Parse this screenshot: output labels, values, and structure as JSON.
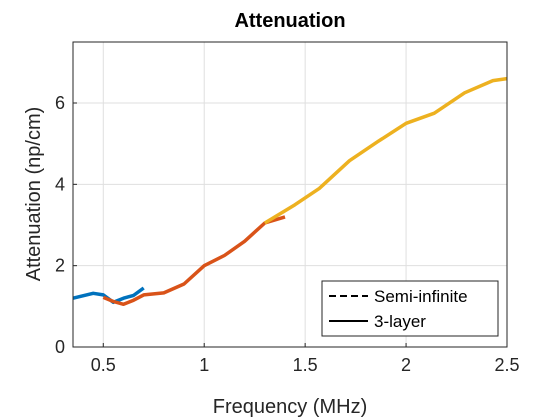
{
  "chart_data": {
    "type": "line",
    "title": "Attenuation",
    "xlabel": "Frequency (MHz)",
    "ylabel": "Attenuation (np/cm)",
    "xlim": [
      0.35,
      2.5
    ],
    "ylim": [
      0,
      7.5
    ],
    "xticks": [
      0.5,
      1,
      1.5,
      2,
      2.5
    ],
    "xtick_labels": [
      "0.5",
      "1",
      "1.5",
      "2",
      "2.5"
    ],
    "yticks": [
      0,
      2,
      4,
      6
    ],
    "ytick_labels": [
      "0",
      "2",
      "4",
      "6"
    ],
    "grid": true,
    "legend": {
      "placement": "bottom-right",
      "entries": [
        {
          "label": "Semi-infinite",
          "style": "dashed",
          "color": "#000000"
        },
        {
          "label": "3-layer",
          "style": "solid",
          "color": "#000000"
        }
      ]
    },
    "series": [
      {
        "color": "#0072BD",
        "x": [
          0.35,
          0.45,
          0.5,
          0.55,
          0.6,
          0.65,
          0.7
        ],
        "y": [
          1.2,
          1.32,
          1.28,
          1.1,
          1.2,
          1.27,
          1.45
        ]
      },
      {
        "color": "#D95319",
        "x": [
          0.5,
          0.55,
          0.6,
          0.65,
          0.7,
          0.8,
          0.9,
          1.0,
          1.1,
          1.2,
          1.3,
          1.4
        ],
        "y": [
          1.22,
          1.12,
          1.05,
          1.15,
          1.28,
          1.33,
          1.55,
          2.0,
          2.25,
          2.6,
          3.05,
          3.2
        ]
      },
      {
        "color": "#EDB120",
        "x": [
          1.3,
          1.45,
          1.57,
          1.72,
          1.86,
          2.0,
          2.14,
          2.29,
          2.43,
          2.5
        ],
        "y": [
          3.05,
          3.5,
          3.9,
          4.58,
          5.05,
          5.5,
          5.75,
          6.25,
          6.55,
          6.6
        ]
      }
    ]
  }
}
